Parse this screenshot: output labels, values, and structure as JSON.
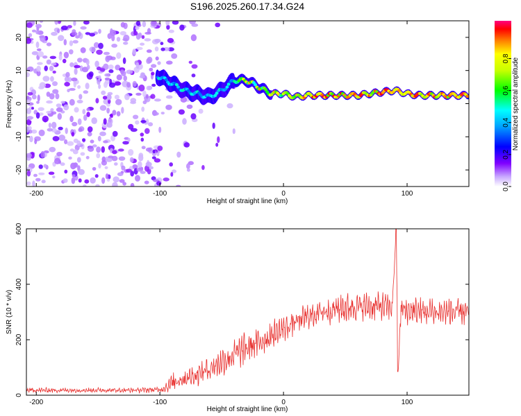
{
  "figure_title": "S196.2025.260.17.34.G24",
  "chart_data": [
    {
      "type": "heatmap",
      "title": "S196.2025.260.17.34.G24",
      "xlabel": "Height of straight line (km)",
      "ylabel": "Frequency (Hz)",
      "xlim": [
        -208,
        150
      ],
      "ylim": [
        -25,
        25
      ],
      "xticks": [
        -200,
        -100,
        0,
        100
      ],
      "yticks": [
        20,
        10,
        0,
        -10,
        -20
      ],
      "colorbar": {
        "label": "Normalized spectral amplitude",
        "range": [
          0,
          1
        ],
        "ticks": [
          "0.0",
          "0.2",
          "0.4",
          "0.6",
          "0.8"
        ]
      },
      "ridge": [
        {
          "x": -100,
          "freq": 8
        },
        {
          "x": -90,
          "freq": 6
        },
        {
          "x": -80,
          "freq": 4
        },
        {
          "x": -70,
          "freq": 3
        },
        {
          "x": -60,
          "freq": 2
        },
        {
          "x": -50,
          "freq": 4
        },
        {
          "x": -40,
          "freq": 7
        },
        {
          "x": -30,
          "freq": 7
        },
        {
          "x": -20,
          "freq": 5
        },
        {
          "x": -10,
          "freq": 3
        },
        {
          "x": 0,
          "freq": 3
        },
        {
          "x": 10,
          "freq": 2
        },
        {
          "x": 20,
          "freq": 2.5
        },
        {
          "x": 40,
          "freq": 2.5
        },
        {
          "x": 60,
          "freq": 2.5
        },
        {
          "x": 80,
          "freq": 3.5
        },
        {
          "x": 90,
          "freq": 4
        },
        {
          "x": 100,
          "freq": 3
        },
        {
          "x": 110,
          "freq": 2.5
        },
        {
          "x": 130,
          "freq": 2.5
        },
        {
          "x": 150,
          "freq": 2.5
        }
      ]
    },
    {
      "type": "line",
      "xlabel": "Height of straight line (km)",
      "ylabel": "SNR (10 * v/v)",
      "xlim": [
        -208,
        150
      ],
      "ylim": [
        0,
        600
      ],
      "xticks": [
        -200,
        -100,
        0,
        100
      ],
      "yticks": [
        0,
        200,
        400,
        600
      ],
      "color": "#e8312f",
      "series": [
        {
          "name": "SNR",
          "x": [
            -208,
            -180,
            -150,
            -120,
            -100,
            -95,
            -90,
            -85,
            -80,
            -70,
            -60,
            -50,
            -40,
            -30,
            -20,
            -10,
            0,
            10,
            20,
            30,
            40,
            50,
            60,
            70,
            80,
            88,
            91,
            93,
            95,
            100,
            120,
            140,
            150
          ],
          "y": [
            18,
            18,
            18,
            18,
            20,
            30,
            45,
            55,
            60,
            75,
            95,
            120,
            145,
            170,
            190,
            215,
            240,
            265,
            285,
            300,
            310,
            315,
            320,
            320,
            320,
            320,
            580,
            100,
            310,
            305,
            300,
            300,
            300
          ],
          "noise": [
            10,
            10,
            10,
            10,
            12,
            25,
            35,
            40,
            40,
            45,
            50,
            55,
            60,
            65,
            60,
            60,
            55,
            50,
            50,
            55,
            60,
            60,
            55,
            55,
            55,
            55,
            0,
            0,
            55,
            55,
            55,
            55,
            55
          ]
        }
      ]
    }
  ]
}
